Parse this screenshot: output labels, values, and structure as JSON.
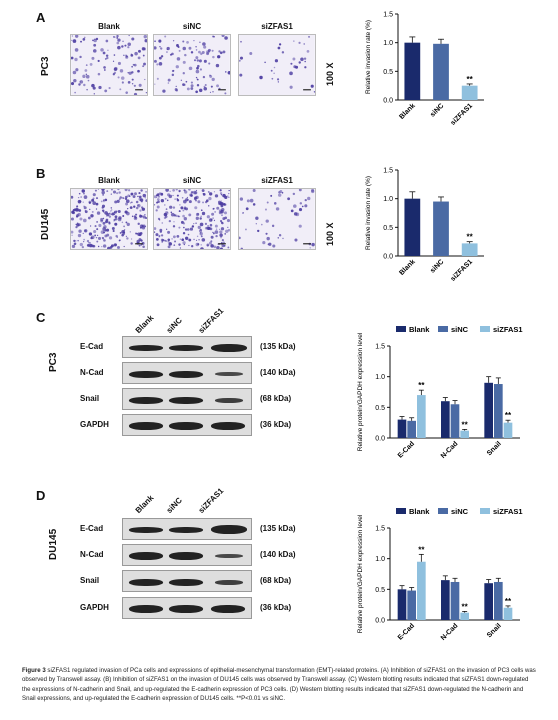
{
  "colors": {
    "blank": "#1a2a6c",
    "sinc": "#4a6aa4",
    "sizfas1": "#8fc0de",
    "stain_bg": "#f1eef8",
    "stain_cell": "#4a3aa0"
  },
  "panels": {
    "A": {
      "letter": "A",
      "row_label": "PC3",
      "image_titles": [
        "Blank",
        "siNC",
        "siZFAS1"
      ],
      "magnification": "100 X"
    },
    "B": {
      "letter": "B",
      "row_label": "DU145",
      "image_titles": [
        "Blank",
        "siNC",
        "siZFAS1"
      ],
      "magnification": "100 X"
    },
    "C": {
      "letter": "C",
      "row_label": "PC3",
      "lanes": [
        "Blank",
        "siNC",
        "siZFAS1"
      ],
      "blots": [
        {
          "name": "E-Cad",
          "kda": "(135 kDa)"
        },
        {
          "name": "N-Cad",
          "kda": "(140 kDa)"
        },
        {
          "name": "Snail",
          "kda": "(68 kDa)"
        },
        {
          "name": "GAPDH",
          "kda": "(36 kDa)"
        }
      ]
    },
    "D": {
      "letter": "D",
      "row_label": "DU145",
      "lanes": [
        "Blank",
        "siNC",
        "siZFAS1"
      ],
      "blots": [
        {
          "name": "E-Cad",
          "kda": "(135 kDa)"
        },
        {
          "name": "N-Cad",
          "kda": "(140 kDa)"
        },
        {
          "name": "Snail",
          "kda": "(68 kDa)"
        },
        {
          "name": "GAPDH",
          "kda": "(36 kDa)"
        }
      ]
    }
  },
  "chart_data": [
    {
      "type": "bar",
      "panel": "A",
      "categories": [
        "Blank",
        "siNC",
        "siZFAS1"
      ],
      "values": [
        1.0,
        0.98,
        0.25
      ],
      "errors": [
        0.1,
        0.08,
        0.03
      ],
      "ylabel": "Relative invasion rate (%)",
      "ylim": [
        0,
        1.5
      ],
      "yticks": [
        "0.0",
        "0.5",
        "1.0",
        "1.5"
      ],
      "annotations": [
        "",
        "",
        "**"
      ]
    },
    {
      "type": "bar",
      "panel": "B",
      "categories": [
        "Blank",
        "siNC",
        "siZFAS1"
      ],
      "values": [
        1.0,
        0.95,
        0.22
      ],
      "errors": [
        0.12,
        0.08,
        0.03
      ],
      "ylabel": "Relative invasion rate (%)",
      "ylim": [
        0,
        1.5
      ],
      "yticks": [
        "0.0",
        "0.5",
        "1.0",
        "1.5"
      ],
      "annotations": [
        "",
        "",
        "**"
      ]
    },
    {
      "type": "bar",
      "panel": "C",
      "categories": [
        "E-Cad",
        "N-Cad",
        "Snail"
      ],
      "series": [
        {
          "name": "Blank",
          "values": [
            0.3,
            0.6,
            0.9
          ],
          "errors": [
            0.05,
            0.06,
            0.1
          ]
        },
        {
          "name": "siNC",
          "values": [
            0.28,
            0.55,
            0.88
          ],
          "errors": [
            0.05,
            0.06,
            0.1
          ]
        },
        {
          "name": "siZFAS1",
          "values": [
            0.7,
            0.12,
            0.25
          ],
          "errors": [
            0.08,
            0.02,
            0.04
          ]
        }
      ],
      "ylabel": "Relative protein/GAPDH expression level",
      "ylim": [
        0,
        1.5
      ],
      "yticks": [
        "0.0",
        "0.5",
        "1.0",
        "1.5"
      ],
      "legend": "top",
      "annotations": [
        "**",
        "**",
        "**"
      ]
    },
    {
      "type": "bar",
      "panel": "D",
      "categories": [
        "E-Cad",
        "N-Cad",
        "Snail"
      ],
      "series": [
        {
          "name": "Blank",
          "values": [
            0.5,
            0.65,
            0.6
          ],
          "errors": [
            0.06,
            0.07,
            0.06
          ]
        },
        {
          "name": "siNC",
          "values": [
            0.48,
            0.62,
            0.62
          ],
          "errors": [
            0.05,
            0.06,
            0.06
          ]
        },
        {
          "name": "siZFAS1",
          "values": [
            0.95,
            0.12,
            0.2
          ],
          "errors": [
            0.12,
            0.02,
            0.03
          ]
        }
      ],
      "ylabel": "Relative protein/GAPDH expression level",
      "ylim": [
        0,
        1.5
      ],
      "yticks": [
        "0.0",
        "0.5",
        "1.0",
        "1.5"
      ],
      "legend": "top",
      "annotations": [
        "**",
        "**",
        "**"
      ]
    }
  ],
  "caption": {
    "label": "Figure 3",
    "text": "siZFAS1 regulated invasion of PCa cells and expressions of epithelial-mesenchymal transformation (EMT)-related proteins. (A) Inhibition of siZFAS1 on the invasion of PC3 cells was observed by Transwell assay. (B) Inhibition of siZFAS1 on the invasion of DU145 cells was observed by Transwell assay. (C) Western blotting results indicated that siZFAS1 down-regulated the expressions of N-cadherin and Snail, and up-regulated the E-cadherin expression of PC3 cells. (D) Western blotting results indicated that siZFAS1 down-regulated the N-cadherin and Snail expressions, and up-regulated the E-cadherin expression of DU145 cells. **P<0.01 vs siNC."
  }
}
